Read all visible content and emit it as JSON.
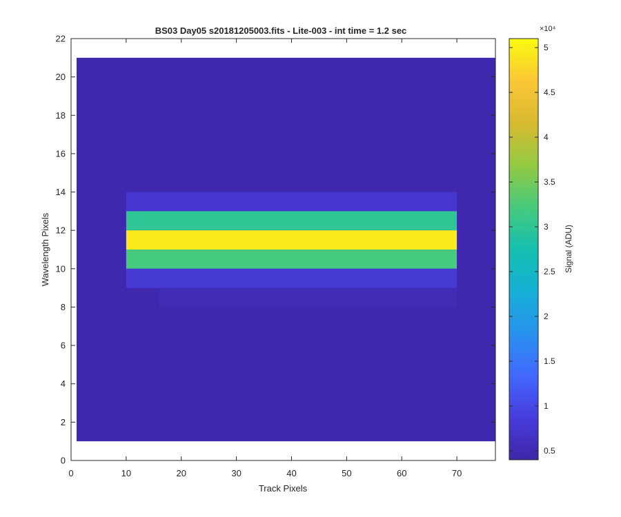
{
  "chart_data": {
    "type": "heatmap",
    "title": "BS03 Day05  s20181205003.fits - Lite-003 - int time = 1.2 sec",
    "xlabel": "Track Pixels",
    "ylabel": "Wavelength Pixels",
    "xlim": [
      0,
      77
    ],
    "ylim": [
      0,
      22
    ],
    "xticks": [
      0,
      10,
      20,
      30,
      40,
      50,
      60,
      70
    ],
    "yticks": [
      0,
      2,
      4,
      6,
      8,
      10,
      12,
      14,
      16,
      18,
      20,
      22
    ],
    "image_extent": {
      "x": [
        1,
        77
      ],
      "y": [
        1,
        21
      ]
    },
    "colorbar": {
      "label": "Signal (ADU)",
      "multiplier": "×10⁴",
      "range": [
        4000,
        51000
      ],
      "ticks": [
        0.5,
        1,
        1.5,
        2,
        2.5,
        3,
        3.5,
        4,
        4.5,
        5
      ],
      "tick_labels": [
        "0.5",
        "1",
        "1.5",
        "2",
        "2.5",
        "3",
        "3.5",
        "4",
        "4.5",
        "5"
      ],
      "colormap": "parula"
    },
    "background_value": 4500,
    "bands": [
      {
        "y_range": [
          13,
          14
        ],
        "x_range": [
          10,
          70
        ],
        "value": 7500
      },
      {
        "y_range": [
          12,
          13
        ],
        "x_range": [
          10,
          70
        ],
        "value": 30000
      },
      {
        "y_range": [
          11,
          12
        ],
        "x_range": [
          10,
          70
        ],
        "value": 49500
      },
      {
        "y_range": [
          10,
          11
        ],
        "x_range": [
          10,
          70
        ],
        "value": 32000
      },
      {
        "y_range": [
          9,
          10
        ],
        "x_range": [
          10,
          70
        ],
        "value": 8000
      },
      {
        "y_range": [
          8,
          9
        ],
        "x_range": [
          16,
          70
        ],
        "value": 5200
      }
    ],
    "grid": false
  }
}
